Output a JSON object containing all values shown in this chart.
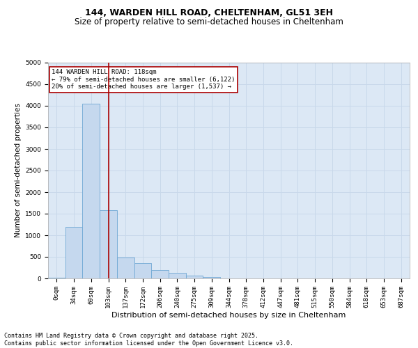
{
  "title_line1": "144, WARDEN HILL ROAD, CHELTENHAM, GL51 3EH",
  "title_line2": "Size of property relative to semi-detached houses in Cheltenham",
  "xlabel": "Distribution of semi-detached houses by size in Cheltenham",
  "ylabel": "Number of semi-detached properties",
  "categories": [
    "0sqm",
    "34sqm",
    "69sqm",
    "103sqm",
    "137sqm",
    "172sqm",
    "206sqm",
    "240sqm",
    "275sqm",
    "309sqm",
    "344sqm",
    "378sqm",
    "412sqm",
    "447sqm",
    "481sqm",
    "515sqm",
    "550sqm",
    "584sqm",
    "618sqm",
    "653sqm",
    "687sqm"
  ],
  "values": [
    10,
    1200,
    4050,
    1580,
    490,
    350,
    200,
    130,
    60,
    30,
    0,
    0,
    0,
    0,
    0,
    0,
    0,
    0,
    0,
    0,
    0
  ],
  "bar_color": "#c5d8ee",
  "bar_edge_color": "#6ea8d4",
  "vline_x": 3.0,
  "vline_color": "#aa0000",
  "ylim": [
    0,
    5000
  ],
  "yticks": [
    0,
    500,
    1000,
    1500,
    2000,
    2500,
    3000,
    3500,
    4000,
    4500,
    5000
  ],
  "annotation_box_text": "144 WARDEN HILL ROAD: 118sqm\n← 79% of semi-detached houses are smaller (6,122)\n20% of semi-detached houses are larger (1,537) →",
  "annotation_box_color": "#aa0000",
  "grid_color": "#c8d8ea",
  "bg_color": "#dce8f5",
  "footer_line1": "Contains HM Land Registry data © Crown copyright and database right 2025.",
  "footer_line2": "Contains public sector information licensed under the Open Government Licence v3.0.",
  "title_fontsize": 9,
  "subtitle_fontsize": 8.5,
  "ylabel_fontsize": 7.5,
  "xlabel_fontsize": 8,
  "tick_fontsize": 6.5,
  "annot_fontsize": 6.5,
  "footer_fontsize": 6
}
